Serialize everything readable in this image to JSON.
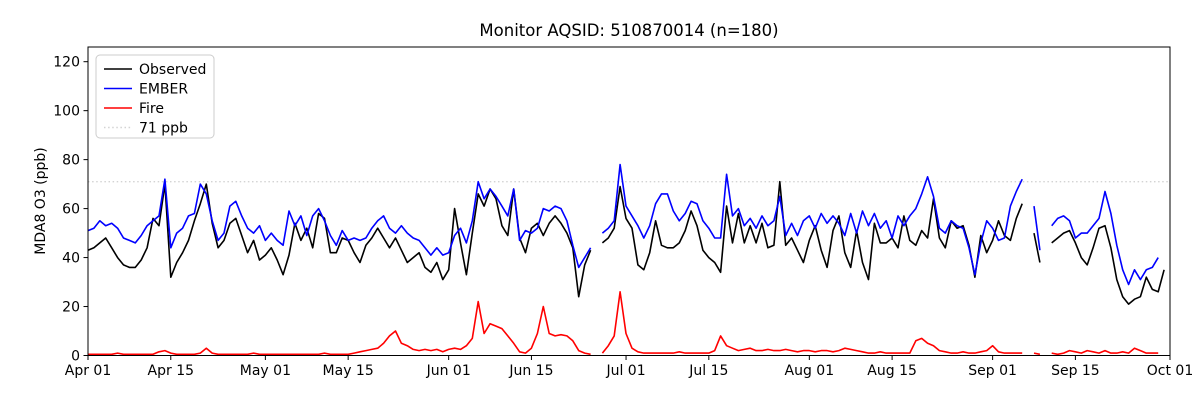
{
  "chart_data": {
    "type": "line",
    "title": "Monitor AQSID: 510870014 (n=180)",
    "xlabel": "",
    "ylabel": "MDA8 O3 (ppb)",
    "x_start_label": "Apr 01",
    "x_end_label": "Oct 01",
    "x_range_days": [
      0,
      183
    ],
    "ylim": [
      0,
      126
    ],
    "yticks": [
      0,
      20,
      40,
      60,
      80,
      100,
      120
    ],
    "xticks": [
      {
        "day": 0,
        "label": "Apr 01"
      },
      {
        "day": 14,
        "label": "Apr 15"
      },
      {
        "day": 30,
        "label": "May 01"
      },
      {
        "day": 44,
        "label": "May 15"
      },
      {
        "day": 61,
        "label": "Jun 01"
      },
      {
        "day": 75,
        "label": "Jun 15"
      },
      {
        "day": 91,
        "label": "Jul 01"
      },
      {
        "day": 105,
        "label": "Jul 15"
      },
      {
        "day": 122,
        "label": "Aug 01"
      },
      {
        "day": 136,
        "label": "Aug 15"
      },
      {
        "day": 153,
        "label": "Sep 01"
      },
      {
        "day": 167,
        "label": "Sep 15"
      },
      {
        "day": 183,
        "label": "Oct 01"
      }
    ],
    "grid": false,
    "legend_position": "upper left",
    "legend_entries": [
      "Observed",
      "EMBER",
      "Fire",
      "71 ppb"
    ],
    "threshold": {
      "value": 71,
      "label": "71 ppb",
      "color": "#d3d3d3",
      "style": "dotted"
    },
    "series": [
      {
        "name": "Observed",
        "color": "#000000",
        "values": [
          43,
          44,
          46,
          48,
          44,
          40,
          37,
          36,
          36,
          39,
          44,
          56,
          53,
          70,
          32,
          38,
          42,
          47,
          55,
          62,
          70,
          54,
          44,
          47,
          54,
          56,
          49,
          42,
          47,
          39,
          41,
          44,
          39,
          33,
          41,
          54,
          47,
          52,
          44,
          58,
          56,
          42,
          42,
          48,
          47,
          42,
          38,
          45,
          48,
          52,
          48,
          44,
          48,
          43,
          38,
          40,
          42,
          36,
          34,
          38,
          31,
          35,
          60,
          46,
          33,
          50,
          66,
          61,
          68,
          64,
          53,
          49,
          68,
          48,
          42,
          52,
          54,
          49,
          54,
          57,
          54,
          50,
          44,
          24,
          37,
          43,
          null,
          46,
          48,
          52,
          69,
          56,
          52,
          37,
          35,
          42,
          55,
          45,
          44,
          44,
          46,
          51,
          59,
          53,
          43,
          40,
          38,
          34,
          61,
          46,
          58,
          46,
          53,
          46,
          54,
          44,
          45,
          71,
          45,
          48,
          43,
          38,
          47,
          53,
          43,
          36,
          51,
          57,
          42,
          36,
          51,
          38,
          31,
          54,
          46,
          46,
          48,
          44,
          57,
          47,
          45,
          51,
          48,
          64,
          48,
          44,
          55,
          52,
          53,
          45,
          32,
          49,
          42,
          47,
          55,
          49,
          47,
          56,
          62,
          null,
          50,
          38,
          null,
          46,
          48,
          50,
          51,
          46,
          40,
          37,
          44,
          52,
          53,
          44,
          31,
          24,
          21,
          23,
          24,
          32,
          27,
          26,
          35
        ]
      },
      {
        "name": "EMBER",
        "color": "#0000ff",
        "values": [
          51,
          52,
          55,
          53,
          54,
          52,
          48,
          47,
          46,
          49,
          53,
          55,
          57,
          72,
          44,
          50,
          52,
          57,
          58,
          70,
          66,
          55,
          47,
          50,
          61,
          63,
          57,
          52,
          50,
          53,
          47,
          50,
          47,
          45,
          59,
          53,
          57,
          49,
          57,
          60,
          55,
          49,
          45,
          51,
          47,
          48,
          47,
          48,
          52,
          55,
          57,
          52,
          50,
          53,
          50,
          48,
          47,
          44,
          41,
          44,
          41,
          42,
          49,
          52,
          46,
          55,
          71,
          64,
          68,
          65,
          61,
          57,
          68,
          47,
          51,
          50,
          52,
          60,
          59,
          61,
          60,
          55,
          45,
          36,
          40,
          44,
          null,
          50,
          52,
          55,
          78,
          61,
          57,
          53,
          48,
          53,
          62,
          66,
          66,
          59,
          55,
          58,
          63,
          62,
          55,
          52,
          48,
          48,
          74,
          57,
          60,
          53,
          56,
          52,
          57,
          53,
          55,
          65,
          49,
          54,
          49,
          55,
          57,
          52,
          58,
          54,
          57,
          54,
          49,
          58,
          50,
          59,
          53,
          58,
          52,
          55,
          48,
          57,
          53,
          57,
          60,
          66,
          73,
          65,
          52,
          50,
          55,
          53,
          52,
          44,
          33,
          46,
          55,
          52,
          47,
          48,
          61,
          67,
          72,
          null,
          61,
          43,
          null,
          53,
          56,
          57,
          55,
          48,
          50,
          50,
          53,
          56,
          67,
          58,
          45,
          35,
          29,
          35,
          31,
          35,
          36,
          40,
          null
        ]
      },
      {
        "name": "Fire",
        "color": "#ff0000",
        "values": [
          0.5,
          0.5,
          0.5,
          0.5,
          0.5,
          1,
          0.5,
          0.5,
          0.5,
          0.5,
          0.5,
          0.5,
          1.5,
          2,
          1,
          0.5,
          0.5,
          0.5,
          0.5,
          1,
          3,
          1,
          0.5,
          0.5,
          0.5,
          0.5,
          0.5,
          0.5,
          1,
          0.5,
          0.5,
          0.5,
          0.5,
          0.5,
          0.5,
          0.5,
          0.5,
          0.5,
          0.5,
          0.5,
          1,
          0.5,
          0.5,
          0.5,
          0.5,
          1,
          1.5,
          2,
          2.5,
          3,
          5,
          8,
          10,
          5,
          4,
          2.5,
          2,
          2.5,
          2,
          2.5,
          1.5,
          2.5,
          3,
          2.5,
          4,
          7,
          22,
          9,
          13,
          12,
          11,
          8,
          5,
          1.5,
          1,
          3,
          9,
          20,
          9,
          8,
          8.5,
          8,
          6,
          2,
          1,
          0.5,
          null,
          1,
          4,
          8,
          26,
          9,
          3,
          1.5,
          1,
          1,
          1,
          1,
          1,
          1,
          1.5,
          1,
          1,
          1,
          1,
          1,
          2,
          8,
          4,
          3,
          2,
          2.5,
          3,
          2,
          2,
          2.5,
          2,
          2,
          2.5,
          2,
          1.5,
          2,
          2,
          1.5,
          2,
          2,
          1.5,
          2,
          3,
          2.5,
          2,
          1.5,
          1,
          1,
          1.5,
          1,
          1,
          1,
          1,
          1,
          6,
          7,
          5,
          4,
          2,
          1.5,
          1,
          1,
          1.5,
          1,
          1,
          1.5,
          2,
          4,
          1.5,
          1,
          1,
          1,
          1,
          null,
          1,
          0.5,
          null,
          1,
          0.5,
          1,
          2,
          1.5,
          1,
          2,
          1.5,
          1,
          2,
          1,
          1,
          1.5,
          1,
          3,
          2,
          1,
          1,
          1,
          null
        ]
      }
    ],
    "colors": {
      "observed": "#000000",
      "ember": "#0000ff",
      "fire": "#ff0000",
      "threshold": "#d3d3d3",
      "axis": "#000000",
      "background": "#ffffff",
      "legend_border": "#cccccc"
    }
  }
}
